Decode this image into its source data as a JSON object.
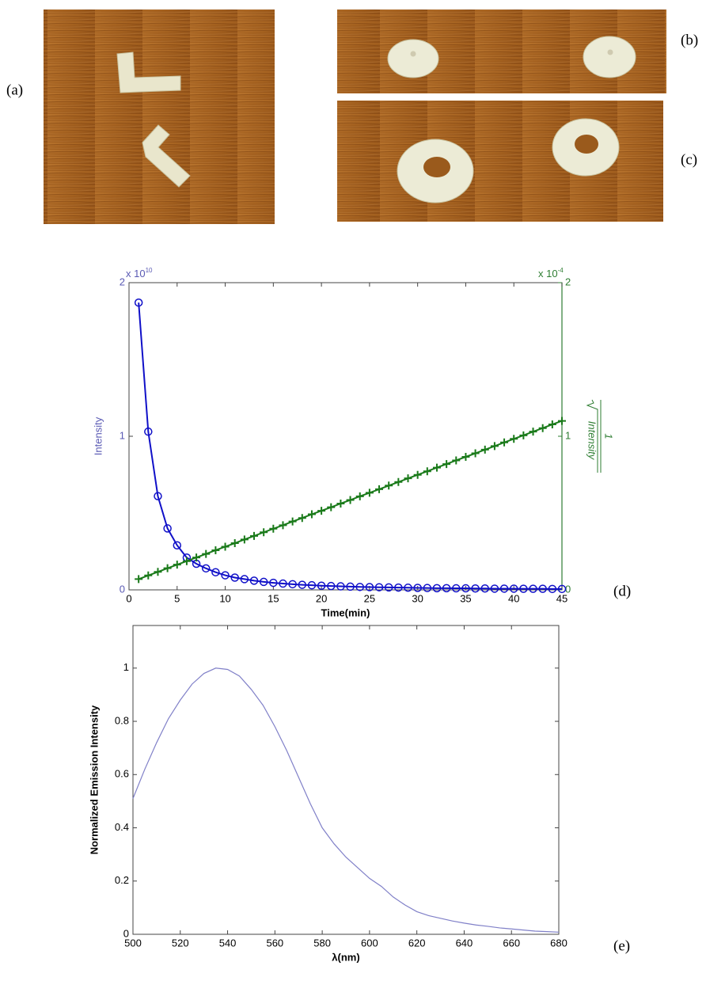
{
  "panel_labels": [
    "(a)",
    "(b)",
    "(c)",
    "(d)",
    "(e)"
  ],
  "chart_data": [
    {
      "type": "line",
      "xlabel": "Time(min)",
      "ylabel": "Intensity",
      "y_multiplier": {
        "base": "x 10",
        "exponent": "10"
      },
      "y2_multiplier": {
        "base": "x 10",
        "exponent": "-4"
      },
      "y2label": {
        "numerator": "1",
        "denominator": "Intensity"
      },
      "ycolor": "#5a5ab4",
      "y2color": "#2e7d32",
      "xlim": [
        0,
        45
      ],
      "xticks": [
        0,
        5,
        10,
        15,
        20,
        25,
        30,
        35,
        40,
        45
      ],
      "ylim": [
        0,
        2
      ],
      "yticks": [
        0,
        1,
        2
      ],
      "y2lim": [
        0,
        2
      ],
      "y2ticks": [
        0,
        1,
        2
      ],
      "x": [
        1,
        2,
        3,
        4,
        5,
        6,
        7,
        8,
        9,
        10,
        11,
        12,
        13,
        14,
        15,
        16,
        17,
        18,
        19,
        20,
        21,
        22,
        23,
        24,
        25,
        26,
        27,
        28,
        29,
        30,
        31,
        32,
        33,
        34,
        35,
        36,
        37,
        38,
        39,
        40,
        41,
        42,
        43,
        44,
        45
      ],
      "series": [
        {
          "color": "#1010c8",
          "marker": "circle",
          "values": [
            1.87,
            1.03,
            0.61,
            0.4,
            0.29,
            0.21,
            0.17,
            0.14,
            0.115,
            0.095,
            0.08,
            0.07,
            0.06,
            0.052,
            0.046,
            0.041,
            0.037,
            0.033,
            0.03,
            0.027,
            0.025,
            0.023,
            0.021,
            0.019,
            0.018,
            0.017,
            0.016,
            0.015,
            0.014,
            0.013,
            0.012,
            0.011,
            0.011,
            0.01,
            0.01,
            0.009,
            0.009,
            0.008,
            0.008,
            0.008,
            0.007,
            0.007,
            0.007,
            0.006,
            0.006
          ]
        },
        {
          "color": "#1a7a1a",
          "marker": "plus",
          "axis": "y2",
          "values": [
            0.07,
            0.094,
            0.117,
            0.141,
            0.164,
            0.187,
            0.211,
            0.234,
            0.258,
            0.281,
            0.304,
            0.328,
            0.351,
            0.375,
            0.398,
            0.421,
            0.445,
            0.468,
            0.492,
            0.515,
            0.538,
            0.562,
            0.585,
            0.609,
            0.632,
            0.655,
            0.679,
            0.702,
            0.726,
            0.749,
            0.772,
            0.796,
            0.819,
            0.843,
            0.866,
            0.889,
            0.913,
            0.936,
            0.96,
            0.983,
            1.006,
            1.03,
            1.053,
            1.077,
            1.1
          ]
        }
      ]
    },
    {
      "type": "line",
      "xlabel": "λ(nm)",
      "ylabel": "Normalized Emission Intensity",
      "xlim": [
        500,
        680
      ],
      "xticks": [
        500,
        520,
        540,
        560,
        580,
        600,
        620,
        640,
        660,
        680
      ],
      "ylim": [
        0,
        1.16
      ],
      "yticks": [
        0,
        0.2,
        0.4,
        0.6,
        0.8,
        1
      ],
      "x": [
        500,
        505,
        510,
        515,
        520,
        525,
        530,
        535,
        540,
        545,
        550,
        555,
        560,
        565,
        570,
        575,
        580,
        585,
        590,
        595,
        600,
        605,
        610,
        615,
        620,
        625,
        630,
        635,
        640,
        645,
        650,
        655,
        660,
        665,
        670,
        675,
        680
      ],
      "series": [
        {
          "color": "#8080c8",
          "values": [
            0.51,
            0.62,
            0.72,
            0.81,
            0.88,
            0.94,
            0.98,
            1.0,
            0.995,
            0.97,
            0.92,
            0.86,
            0.78,
            0.69,
            0.59,
            0.49,
            0.4,
            0.34,
            0.29,
            0.25,
            0.21,
            0.18,
            0.14,
            0.11,
            0.085,
            0.07,
            0.06,
            0.05,
            0.042,
            0.035,
            0.03,
            0.024,
            0.02,
            0.016,
            0.012,
            0.01,
            0.008
          ]
        }
      ]
    }
  ]
}
